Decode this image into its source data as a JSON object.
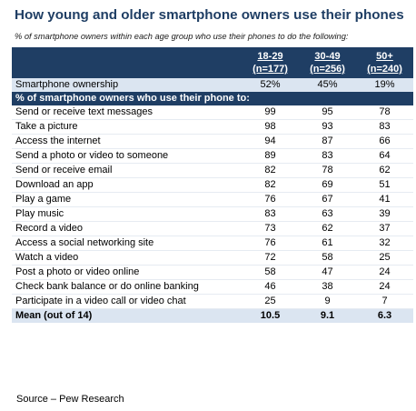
{
  "title": "How young and older smartphone owners use their phones",
  "subtitle": "% of smartphone owners within each age group who use their phones to do the following:",
  "chart_data": {
    "type": "table",
    "columns": [
      {
        "range": "18-29",
        "n": "(n=177)"
      },
      {
        "range": "30-49",
        "n": "(n=256)"
      },
      {
        "range": "50+",
        "n": "(n=240)"
      }
    ],
    "ownership": {
      "label": "Smartphone ownership",
      "values": [
        "52%",
        "45%",
        "19%"
      ]
    },
    "section_header": "% of smartphone owners who use their phone to:",
    "rows": [
      {
        "label": "Send or receive text messages",
        "values": [
          99,
          95,
          78
        ]
      },
      {
        "label": "Take a picture",
        "values": [
          98,
          93,
          83
        ]
      },
      {
        "label": "Access the internet",
        "values": [
          94,
          87,
          66
        ]
      },
      {
        "label": "Send a photo or video to someone",
        "values": [
          89,
          83,
          64
        ]
      },
      {
        "label": "Send or receive email",
        "values": [
          82,
          78,
          62
        ]
      },
      {
        "label": "Download an app",
        "values": [
          82,
          69,
          51
        ]
      },
      {
        "label": "Play a game",
        "values": [
          76,
          67,
          41
        ]
      },
      {
        "label": "Play music",
        "values": [
          83,
          63,
          39
        ]
      },
      {
        "label": "Record a video",
        "values": [
          73,
          62,
          37
        ]
      },
      {
        "label": "Access a social networking site",
        "values": [
          76,
          61,
          32
        ]
      },
      {
        "label": "Watch a video",
        "values": [
          72,
          58,
          25
        ]
      },
      {
        "label": "Post a photo or video online",
        "values": [
          58,
          47,
          24
        ]
      },
      {
        "label": "Check bank balance or do online banking",
        "values": [
          46,
          38,
          24
        ]
      },
      {
        "label": "Participate in a video call or video chat",
        "values": [
          25,
          9,
          7
        ]
      }
    ],
    "mean": {
      "label": "Mean (out of 14)",
      "values": [
        "10.5",
        "9.1",
        "6.3"
      ]
    }
  },
  "source": "Source – Pew Research"
}
